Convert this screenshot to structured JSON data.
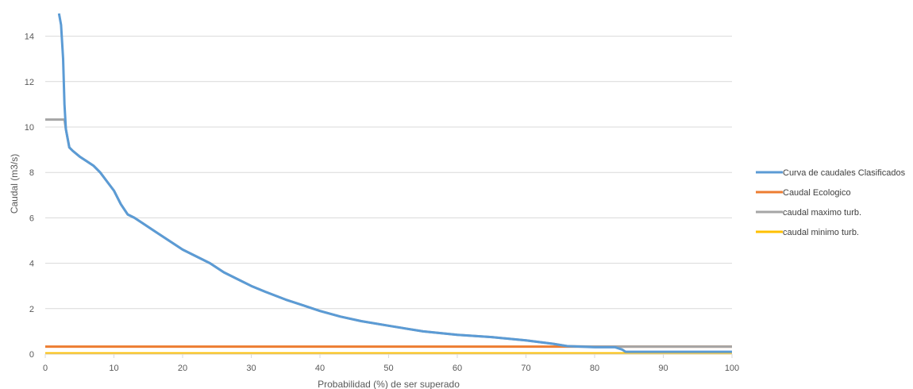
{
  "chart_data": {
    "type": "line",
    "xlabel": "Probabilidad (%) de ser superado",
    "ylabel": "Caudal (m3/s)",
    "xlim": [
      0,
      100
    ],
    "ylim": [
      0,
      15
    ],
    "x_ticks": [
      0,
      10,
      20,
      30,
      40,
      50,
      60,
      70,
      80,
      90,
      100
    ],
    "y_ticks": [
      0,
      2,
      4,
      6,
      8,
      10,
      12,
      14
    ],
    "grid": "horizontal",
    "legend_position": "right",
    "series": [
      {
        "name": "Curva de caudales Clasificados",
        "color": "#5B9BD5",
        "x": [
          2.0,
          2.3,
          2.6,
          2.8,
          3.0,
          3.5,
          4,
          5,
          6,
          7,
          8,
          9,
          10,
          11,
          12,
          13,
          14,
          16,
          18,
          20,
          22,
          24,
          26,
          28,
          30,
          32,
          35,
          38,
          40,
          43,
          46,
          50,
          55,
          60,
          65,
          70,
          74,
          76,
          80,
          83,
          84,
          84.5,
          100
        ],
        "y": [
          15.0,
          14.5,
          13.0,
          11.0,
          9.9,
          9.1,
          8.95,
          8.7,
          8.5,
          8.3,
          8.0,
          7.6,
          7.2,
          6.6,
          6.15,
          6.0,
          5.8,
          5.4,
          5.0,
          4.6,
          4.3,
          4.0,
          3.6,
          3.3,
          3.0,
          2.75,
          2.4,
          2.1,
          1.9,
          1.65,
          1.45,
          1.25,
          1.0,
          0.85,
          0.75,
          0.6,
          0.45,
          0.35,
          0.3,
          0.3,
          0.2,
          0.1,
          0.1
        ]
      },
      {
        "name": "Caudal Ecologico",
        "color": "#ED7D31",
        "x": [
          0,
          100
        ],
        "y": [
          0.33,
          0.33
        ]
      },
      {
        "name": "caudal maximo turb.",
        "color": "#A5A5A5",
        "x": [
          0,
          2.8,
          3.0,
          3.5,
          4,
          5,
          6,
          7,
          8,
          9,
          10,
          11,
          12,
          13,
          14,
          16,
          18,
          20,
          22,
          24,
          26,
          28,
          30,
          32,
          35,
          38,
          40,
          43,
          46,
          50,
          55,
          60,
          65,
          70,
          74,
          76,
          80,
          100
        ],
        "y": [
          10.33,
          10.33,
          9.9,
          9.1,
          8.95,
          8.7,
          8.5,
          8.3,
          8.0,
          7.6,
          7.2,
          6.6,
          6.15,
          6.0,
          5.8,
          5.4,
          5.0,
          4.6,
          4.3,
          4.0,
          3.6,
          3.3,
          3.0,
          2.75,
          2.4,
          2.1,
          1.9,
          1.65,
          1.45,
          1.25,
          1.0,
          0.85,
          0.75,
          0.6,
          0.45,
          0.35,
          0.33,
          0.33
        ]
      },
      {
        "name": "caudal minimo turb.",
        "color": "#FFC000",
        "x": [
          0,
          100
        ],
        "y": [
          0.03,
          0.03
        ]
      }
    ]
  }
}
